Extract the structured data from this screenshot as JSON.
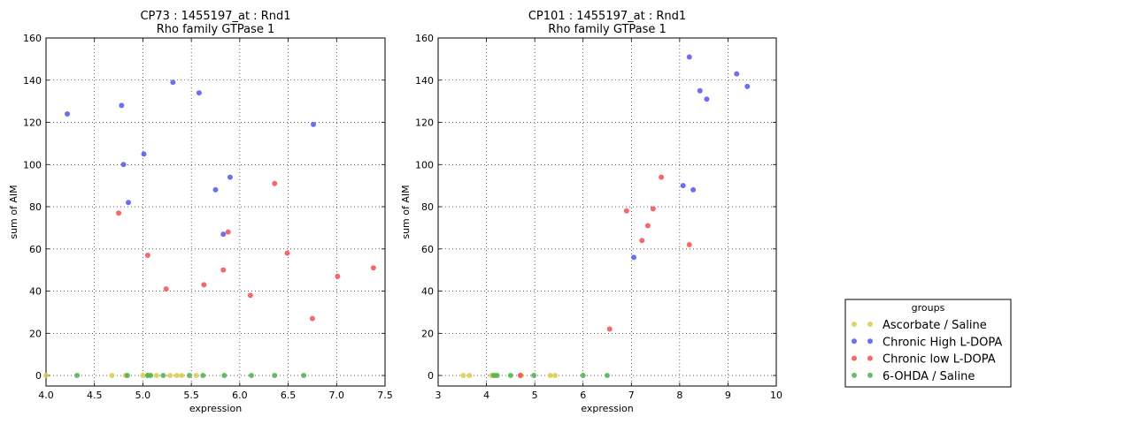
{
  "chart_data": [
    {
      "type": "scatter",
      "title": "CP73 : 1455197_at : Rnd1",
      "subtitle": "Rho family GTPase 1",
      "xlabel": "expression",
      "ylabel": "sum of AIM",
      "xlim": [
        4.0,
        7.5
      ],
      "ylim": [
        -5,
        160
      ],
      "xticks": [
        "4.0",
        "4.5",
        "5.0",
        "5.5",
        "6.0",
        "6.5",
        "7.0",
        "7.5"
      ],
      "yticks": [
        "0",
        "20",
        "40",
        "60",
        "80",
        "100",
        "120",
        "140",
        "160"
      ],
      "grid": true,
      "series": [
        {
          "group": 0,
          "x": [
            4.0,
            4.68,
            4.82,
            5.0,
            5.05,
            5.14,
            5.28,
            5.35,
            5.4,
            5.55
          ],
          "y": [
            0,
            0,
            0,
            0,
            0,
            0,
            0,
            0,
            0,
            0
          ]
        },
        {
          "group": 1,
          "x": [
            4.22,
            4.78,
            4.8,
            4.85,
            5.01,
            5.31,
            5.58,
            5.75,
            5.83,
            5.9,
            6.76
          ],
          "y": [
            124,
            128,
            100,
            82,
            105,
            139,
            134,
            88,
            67,
            94,
            119
          ]
        },
        {
          "group": 2,
          "x": [
            4.75,
            5.05,
            5.24,
            5.63,
            5.83,
            5.88,
            6.11,
            6.36,
            6.49,
            6.75,
            7.01,
            7.38
          ],
          "y": [
            77,
            57,
            41,
            43,
            50,
            68,
            38,
            91,
            58,
            27,
            47,
            51
          ]
        },
        {
          "group": 3,
          "x": [
            4.32,
            4.84,
            5.05,
            5.08,
            5.21,
            5.48,
            5.62,
            5.84,
            6.12,
            6.36,
            6.66
          ],
          "y": [
            0,
            0,
            0,
            0,
            0,
            0,
            0,
            0,
            0,
            0,
            0
          ]
        }
      ]
    },
    {
      "type": "scatter",
      "title": "CP101 : 1455197_at : Rnd1",
      "subtitle": "Rho family GTPase 1",
      "xlabel": "expression",
      "ylabel": "sum of AIM",
      "xlim": [
        3,
        10
      ],
      "ylim": [
        -5,
        160
      ],
      "xticks": [
        "3",
        "4",
        "5",
        "6",
        "7",
        "8",
        "9",
        "10"
      ],
      "yticks": [
        "0",
        "20",
        "40",
        "60",
        "80",
        "100",
        "120",
        "140",
        "160"
      ],
      "grid": true,
      "series": [
        {
          "group": 0,
          "x": [
            3.52,
            3.65,
            4.1,
            4.18,
            4.72,
            5.32,
            5.42
          ],
          "y": [
            0,
            0,
            0,
            0,
            0,
            0,
            0
          ]
        },
        {
          "group": 1,
          "x": [
            7.05,
            8.07,
            8.2,
            8.28,
            8.42,
            8.56,
            9.18,
            9.4
          ],
          "y": [
            56,
            90,
            151,
            88,
            135,
            131,
            143,
            137
          ]
        },
        {
          "group": 2,
          "x": [
            6.55,
            6.9,
            7.22,
            7.34,
            7.45,
            7.62,
            8.2,
            4.7
          ],
          "y": [
            22,
            78,
            64,
            71,
            79,
            94,
            62,
            0
          ]
        },
        {
          "group": 3,
          "x": [
            4.15,
            4.22,
            4.5,
            4.98,
            6.0,
            6.5
          ],
          "y": [
            0,
            0,
            0,
            0,
            0,
            0
          ]
        }
      ]
    }
  ],
  "legend": {
    "title": "groups",
    "placement": "lower-right-outside",
    "entries": [
      {
        "label": "Ascorbate / Saline",
        "color": "#d9cc52"
      },
      {
        "label": "Chronic High L-DOPA",
        "color": "#5555f2"
      },
      {
        "label": "Chronic low L-DOPA",
        "color": "#f24f4f"
      },
      {
        "label": "6-OHDA / Saline",
        "color": "#4fb04f"
      }
    ]
  }
}
